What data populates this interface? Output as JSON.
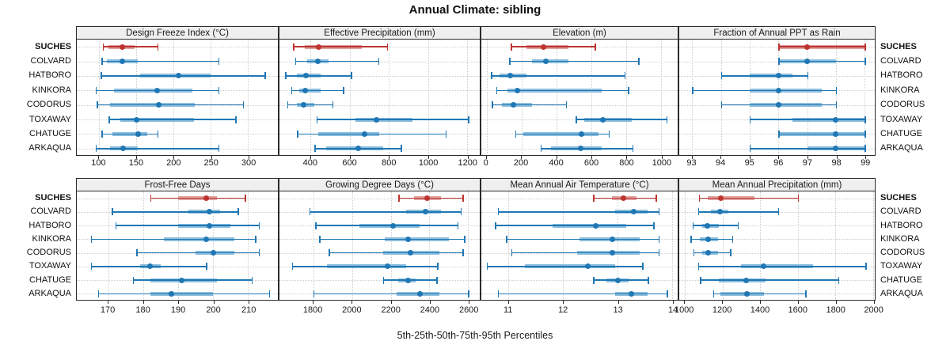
{
  "title": "Annual Climate: sibling",
  "xlabel": "5th-25th-50th-75th-95th Percentiles",
  "sites": [
    "SUCHES",
    "COLVARD",
    "HATBORO",
    "KINKORA",
    "CODORUS",
    "TOXAWAY",
    "CHATUGE",
    "ARKAQUA"
  ],
  "highlight_site": "SUCHES",
  "colors": {
    "highlight": "#bd3430",
    "highlight_band": "#e0a19e",
    "normal": "#1f77b4",
    "normal_band": "#8cbedd",
    "grid": "#cdcdcd",
    "header_bg": "#efefef",
    "border": "#2b2b2b",
    "text": "#1a1a1a"
  },
  "chart_data": {
    "type": "dotplot-range",
    "percentiles": [
      5,
      25,
      50,
      75,
      95
    ],
    "legend": "5th-25th-50th-75th-95th Percentiles",
    "panels": [
      {
        "title": "Design Freeze Index (°C)",
        "xlim": [
          70,
          340
        ],
        "ticks": [
          100,
          150,
          200,
          250,
          300
        ],
        "series": [
          {
            "site": "SUCHES",
            "values": [
              105,
              113,
              131,
              148,
              178
            ]
          },
          {
            "site": "COLVARD",
            "values": [
              103,
              110,
              131,
              152,
              260
            ]
          },
          {
            "site": "HATBORO",
            "values": [
              102,
              155,
              207,
              250,
              322
            ]
          },
          {
            "site": "KINKORA",
            "values": [
              95,
              120,
              178,
              225,
              260
            ]
          },
          {
            "site": "CODORUS",
            "values": [
              97,
              115,
              180,
              228,
              293
            ]
          },
          {
            "site": "TOXAWAY",
            "values": [
              113,
              128,
              150,
              227,
              283
            ]
          },
          {
            "site": "CHATUGE",
            "values": [
              103,
              118,
              152,
              165,
              178
            ]
          },
          {
            "site": "ARKAQUA",
            "values": [
              95,
              115,
              132,
              152,
              260
            ]
          }
        ]
      },
      {
        "title": "Effective Precipitation (mm)",
        "xlim": [
          240,
          1265
        ],
        "ticks": [
          400,
          600,
          800,
          1000,
          1200
        ],
        "series": [
          {
            "site": "SUCHES",
            "values": [
              310,
              370,
              440,
              660,
              790
            ]
          },
          {
            "site": "COLVARD",
            "values": [
              320,
              380,
              435,
              490,
              745
            ]
          },
          {
            "site": "HATBORO",
            "values": [
              270,
              330,
              375,
              450,
              605
            ]
          },
          {
            "site": "KINKORA",
            "values": [
              300,
              340,
              370,
              450,
              565
            ]
          },
          {
            "site": "CODORUS",
            "values": [
              280,
              330,
              365,
              420,
              510
            ]
          },
          {
            "site": "TOXAWAY",
            "values": [
              430,
              630,
              735,
              920,
              1205
            ]
          },
          {
            "site": "CHATUGE",
            "values": [
              330,
              440,
              675,
              750,
              1090
            ]
          },
          {
            "site": "ARKAQUA",
            "values": [
              420,
              480,
              645,
              770,
              860
            ]
          }
        ]
      },
      {
        "title": "Elevation (m)",
        "xlim": [
          -30,
          1095
        ],
        "ticks": [
          0,
          200,
          400,
          600,
          800,
          1000
        ],
        "series": [
          {
            "site": "SUCHES",
            "values": [
              140,
              230,
              325,
              470,
              620
            ]
          },
          {
            "site": "COLVARD",
            "values": [
              130,
              260,
              340,
              470,
              870
            ]
          },
          {
            "site": "HATBORO",
            "values": [
              25,
              75,
              135,
              230,
              790
            ]
          },
          {
            "site": "KINKORA",
            "values": [
              55,
              120,
              175,
              660,
              810
            ]
          },
          {
            "site": "CODORUS",
            "values": [
              30,
              90,
              155,
              260,
              455
            ]
          },
          {
            "site": "TOXAWAY",
            "values": [
              510,
              560,
              665,
              830,
              1030
            ]
          },
          {
            "site": "CHATUGE",
            "values": [
              165,
              210,
              545,
              640,
              700
            ]
          },
          {
            "site": "ARKAQUA",
            "values": [
              310,
              370,
              540,
              660,
              835
            ]
          }
        ]
      },
      {
        "title": "Fraction of Annual PPT as Rain",
        "xlim": [
          92.55,
          99.35
        ],
        "ticks": [
          93,
          94,
          95,
          96,
          97,
          98,
          99
        ],
        "series": [
          {
            "site": "SUCHES",
            "values": [
              96,
              96,
              97,
              99,
              99
            ]
          },
          {
            "site": "COLVARD",
            "values": [
              96,
              96,
              97,
              98,
              99
            ]
          },
          {
            "site": "HATBORO",
            "values": [
              94,
              95,
              96,
              96.5,
              97
            ]
          },
          {
            "site": "KINKORA",
            "values": [
              93,
              95,
              96,
              97.5,
              98
            ]
          },
          {
            "site": "CODORUS",
            "values": [
              94,
              95,
              96,
              97.5,
              98
            ]
          },
          {
            "site": "TOXAWAY",
            "values": [
              95,
              96.5,
              98,
              99,
              99
            ]
          },
          {
            "site": "CHATUGE",
            "values": [
              96,
              96,
              98,
              99,
              99
            ]
          },
          {
            "site": "ARKAQUA",
            "values": [
              95,
              97,
              98,
              99,
              99
            ]
          }
        ]
      },
      {
        "title": "Frost-Free Days",
        "xlim": [
          161,
          218.5
        ],
        "ticks": [
          170,
          180,
          190,
          200,
          210
        ],
        "series": [
          {
            "site": "SUCHES",
            "values": [
              182,
              190,
              198,
              201,
              209
            ]
          },
          {
            "site": "COLVARD",
            "values": [
              171,
              193,
              199,
              202,
              207
            ]
          },
          {
            "site": "HATBORO",
            "values": [
              172,
              190,
              199,
              205,
              213
            ]
          },
          {
            "site": "KINKORA",
            "values": [
              165,
              186,
              198,
              206,
              212
            ]
          },
          {
            "site": "CODORUS",
            "values": [
              178,
              195,
              200,
              206,
              213
            ]
          },
          {
            "site": "TOXAWAY",
            "values": [
              165,
              179,
              182,
              185,
              198
            ]
          },
          {
            "site": "CHATUGE",
            "values": [
              177,
              182,
              191,
              201,
              211
            ]
          },
          {
            "site": "ARKAQUA",
            "values": [
              167,
              182,
              188,
              200,
              216
            ]
          }
        ]
      },
      {
        "title": "Growing Degree Days (°C)",
        "xlim": [
          1625,
          2660
        ],
        "ticks": [
          1800,
          2000,
          2200,
          2400,
          2600
        ],
        "series": [
          {
            "site": "SUCHES",
            "values": [
              2240,
              2320,
              2390,
              2460,
              2570
            ]
          },
          {
            "site": "COLVARD",
            "values": [
              1780,
              2280,
              2380,
              2460,
              2560
            ]
          },
          {
            "site": "HATBORO",
            "values": [
              1810,
              2040,
              2210,
              2350,
              2545
            ]
          },
          {
            "site": "KINKORA",
            "values": [
              1830,
              2170,
              2290,
              2500,
              2580
            ]
          },
          {
            "site": "CODORUS",
            "values": [
              1880,
              2160,
              2300,
              2450,
              2570
            ]
          },
          {
            "site": "TOXAWAY",
            "values": [
              1690,
              1870,
              2185,
              2280,
              2440
            ]
          },
          {
            "site": "CHATUGE",
            "values": [
              2160,
              2240,
              2290,
              2330,
              2435
            ]
          },
          {
            "site": "ARKAQUA",
            "values": [
              1800,
              2230,
              2350,
              2450,
              2600
            ]
          }
        ]
      },
      {
        "title": "Mean Annual Air Temperature (°C)",
        "xlim": [
          10.5,
          14.1
        ],
        "ticks": [
          11,
          12,
          13,
          14
        ],
        "series": [
          {
            "site": "SUCHES",
            "values": [
              12.55,
              12.9,
              13.1,
              13.35,
              13.7
            ]
          },
          {
            "site": "COLVARD",
            "values": [
              10.8,
              12.95,
              13.3,
              13.55,
              13.75
            ]
          },
          {
            "site": "HATBORO",
            "values": [
              10.75,
              11.8,
              12.6,
              13.15,
              13.65
            ]
          },
          {
            "site": "KINKORA",
            "values": [
              10.95,
              12.3,
              12.9,
              13.4,
              13.75
            ]
          },
          {
            "site": "CODORUS",
            "values": [
              11.05,
              12.25,
              12.9,
              13.4,
              13.75
            ]
          },
          {
            "site": "TOXAWAY",
            "values": [
              10.6,
              11.3,
              12.45,
              12.95,
              13.45
            ]
          },
          {
            "site": "CHATUGE",
            "values": [
              12.55,
              12.8,
              13.0,
              13.2,
              13.55
            ]
          },
          {
            "site": "ARKAQUA",
            "values": [
              10.8,
              12.95,
              13.25,
              13.55,
              13.9
            ]
          }
        ]
      },
      {
        "title": "Mean Annual Precipitation (mm)",
        "xlim": [
          970,
          2010
        ],
        "ticks": [
          1000,
          1200,
          1400,
          1600,
          1800,
          2000
        ],
        "series": [
          {
            "site": "SUCHES",
            "values": [
              1075,
              1120,
              1190,
              1370,
              1600
            ]
          },
          {
            "site": "COLVARD",
            "values": [
              1070,
              1140,
              1185,
              1230,
              1495
            ]
          },
          {
            "site": "HATBORO",
            "values": [
              1040,
              1090,
              1120,
              1180,
              1280
            ]
          },
          {
            "site": "KINKORA",
            "values": [
              1030,
              1080,
              1125,
              1175,
              1250
            ]
          },
          {
            "site": "CODORUS",
            "values": [
              1045,
              1090,
              1125,
              1175,
              1240
            ]
          },
          {
            "site": "TOXAWAY",
            "values": [
              1070,
              1300,
              1420,
              1680,
              1960
            ]
          },
          {
            "site": "CHATUGE",
            "values": [
              1080,
              1180,
              1325,
              1430,
              1815
            ]
          },
          {
            "site": "ARKAQUA",
            "values": [
              1150,
              1190,
              1330,
              1420,
              1640
            ]
          }
        ]
      }
    ]
  }
}
